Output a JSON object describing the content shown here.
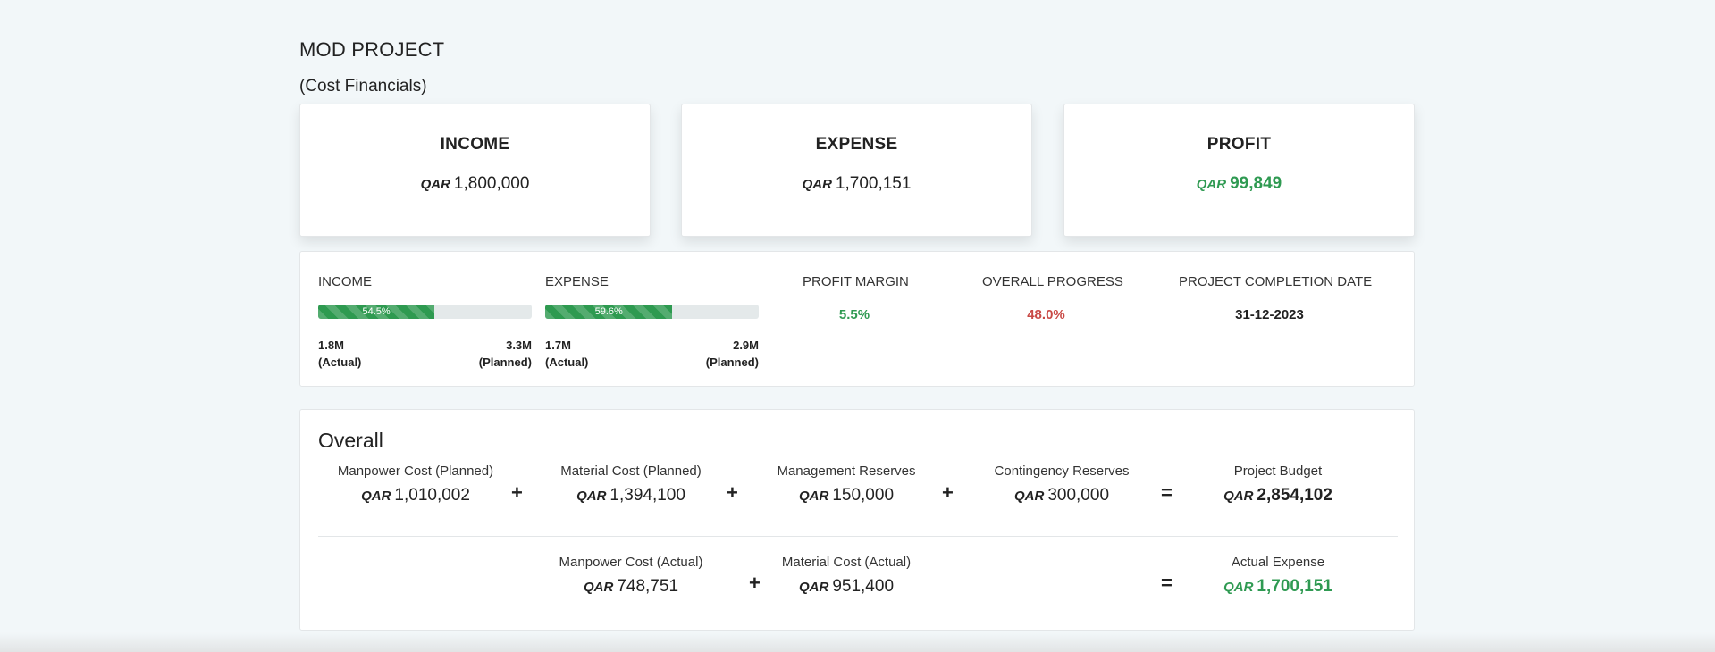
{
  "header": {
    "title": "MOD PROJECT",
    "subtitle": "(Cost Financials)"
  },
  "currency": "QAR",
  "cards": {
    "income": {
      "label": "INCOME",
      "value": "1,800,000"
    },
    "expense": {
      "label": "EXPENSE",
      "value": "1,700,151"
    },
    "profit": {
      "label": "PROFIT",
      "value": "99,849",
      "color": "#2f9a52"
    }
  },
  "stats": {
    "income": {
      "label": "INCOME",
      "progress_text": "54.5%",
      "progress": 54.5,
      "actual_value": "1.8M",
      "actual_label": "(Actual)",
      "planned_value": "3.3M",
      "planned_label": "(Planned)"
    },
    "expense": {
      "label": "EXPENSE",
      "progress_text": "59.6%",
      "progress": 59.6,
      "actual_value": "1.7M",
      "actual_label": "(Actual)",
      "planned_value": "2.9M",
      "planned_label": "(Planned)"
    },
    "profit_margin": {
      "label": "PROFIT MARGIN",
      "value": "5.5%",
      "color": "#2f9a52"
    },
    "overall_progress": {
      "label": "OVERALL PROGRESS",
      "value": "48.0%",
      "color": "#c94a46"
    },
    "completion_date": {
      "label": "PROJECT COMPLETION DATE",
      "value": "31-12-2023"
    }
  },
  "overall": {
    "title": "Overall",
    "planned": [
      {
        "label": "Manpower Cost (Planned)",
        "value": "1,010,002"
      },
      {
        "label": "Material Cost (Planned)",
        "value": "1,394,100"
      },
      {
        "label": "Management Reserves",
        "value": "150,000"
      },
      {
        "label": "Contingency Reserves",
        "value": "300,000"
      }
    ],
    "budget": {
      "label": "Project Budget",
      "value": "2,854,102"
    },
    "actual": [
      {
        "label": "Manpower Cost (Actual)",
        "value": "748,751"
      },
      {
        "label": "Material Cost (Actual)",
        "value": "951,400"
      }
    ],
    "actual_expense": {
      "label": "Actual Expense",
      "value": "1,700,151",
      "color": "#2f9a52"
    },
    "plus": "+",
    "equals": "="
  }
}
